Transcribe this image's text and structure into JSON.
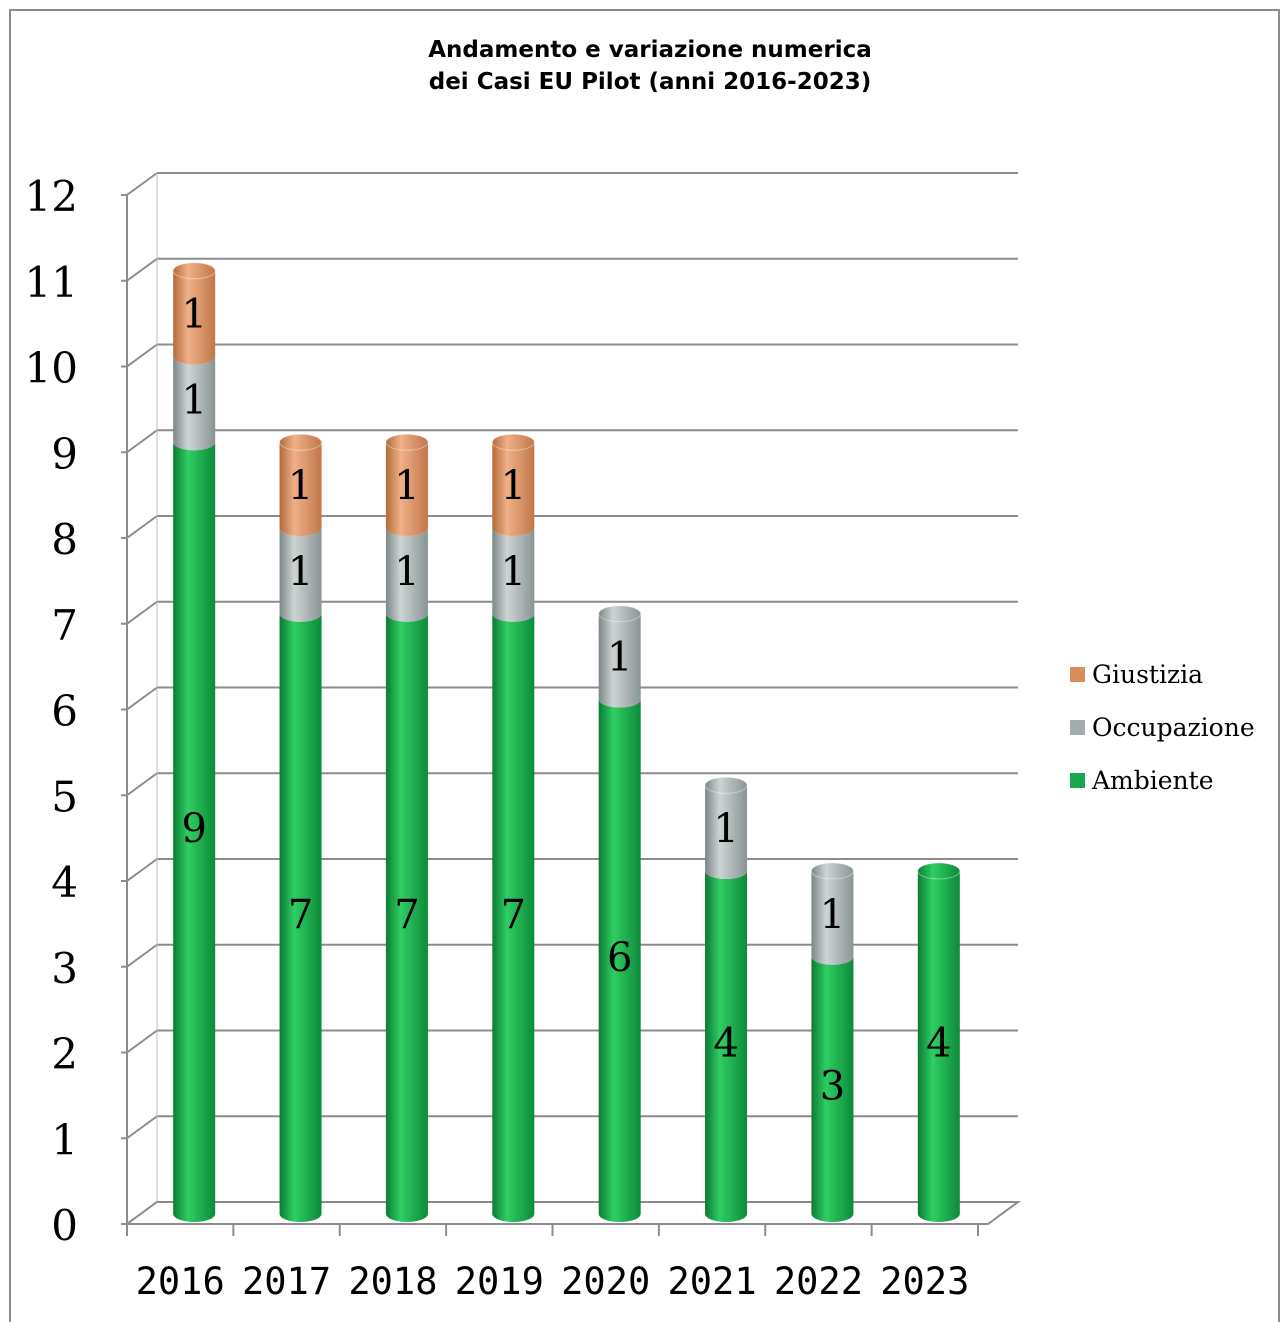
{
  "chart_data": {
    "type": "bar",
    "stacked": true,
    "title": [
      "Andamento e variazione numerica",
      "dei Casi EU Pilot (anni 2016-2023)"
    ],
    "categories": [
      "2016",
      "2017",
      "2018",
      "2019",
      "2020",
      "2021",
      "2022",
      "2023"
    ],
    "series": [
      {
        "name": "Ambiente",
        "color": "#1aa64a",
        "values": [
          9,
          7,
          7,
          7,
          6,
          4,
          3,
          4
        ]
      },
      {
        "name": "Occupazione",
        "color": "#a4adad",
        "values": [
          1,
          1,
          1,
          1,
          1,
          1,
          1,
          0
        ]
      },
      {
        "name": "Giustizia",
        "color": "#d98d5c",
        "values": [
          1,
          1,
          1,
          1,
          0,
          0,
          0,
          0
        ]
      }
    ],
    "legend_order": [
      "Giustizia",
      "Occupazione",
      "Ambiente"
    ],
    "yticks": [
      "0",
      "1",
      "2",
      "3",
      "4",
      "5",
      "6",
      "7",
      "8",
      "9",
      "10",
      "11",
      "12"
    ],
    "ylim": [
      0,
      12
    ],
    "legend_position": "right",
    "grid": true
  }
}
